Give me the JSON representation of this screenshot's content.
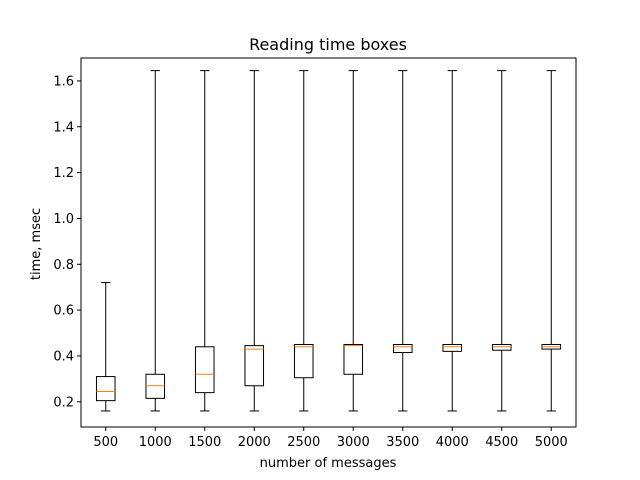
{
  "chart_data": {
    "type": "boxplot",
    "title": "Reading time boxes",
    "xlabel": "number of messages",
    "ylabel": "time, msec",
    "ylim": [
      0.09,
      1.7
    ],
    "yticks": [
      0.2,
      0.4,
      0.6,
      0.8,
      1.0,
      1.2,
      1.4,
      1.6
    ],
    "ytick_labels": [
      "0.2",
      "0.4",
      "0.6",
      "0.8",
      "1.0",
      "1.2",
      "1.4",
      "1.6"
    ],
    "categories": [
      "500",
      "1000",
      "1500",
      "2000",
      "2500",
      "3000",
      "3500",
      "4000",
      "4500",
      "5000"
    ],
    "boxes": [
      {
        "category": "500",
        "whisker_low": 0.16,
        "q1": 0.205,
        "median": 0.245,
        "q3": 0.31,
        "whisker_high": 0.72
      },
      {
        "category": "1000",
        "whisker_low": 0.16,
        "q1": 0.215,
        "median": 0.27,
        "q3": 0.32,
        "whisker_high": 1.645
      },
      {
        "category": "1500",
        "whisker_low": 0.16,
        "q1": 0.24,
        "median": 0.32,
        "q3": 0.44,
        "whisker_high": 1.645
      },
      {
        "category": "2000",
        "whisker_low": 0.16,
        "q1": 0.27,
        "median": 0.43,
        "q3": 0.445,
        "whisker_high": 1.645
      },
      {
        "category": "2500",
        "whisker_low": 0.16,
        "q1": 0.305,
        "median": 0.44,
        "q3": 0.45,
        "whisker_high": 1.645
      },
      {
        "category": "3000",
        "whisker_low": 0.16,
        "q1": 0.32,
        "median": 0.445,
        "q3": 0.45,
        "whisker_high": 1.645
      },
      {
        "category": "3500",
        "whisker_low": 0.16,
        "q1": 0.415,
        "median": 0.44,
        "q3": 0.45,
        "whisker_high": 1.645
      },
      {
        "category": "4000",
        "whisker_low": 0.16,
        "q1": 0.42,
        "median": 0.44,
        "q3": 0.45,
        "whisker_high": 1.645
      },
      {
        "category": "4500",
        "whisker_low": 0.16,
        "q1": 0.425,
        "median": 0.44,
        "q3": 0.45,
        "whisker_high": 1.645
      },
      {
        "category": "5000",
        "whisker_low": 0.16,
        "q1": 0.43,
        "median": 0.44,
        "q3": 0.45,
        "whisker_high": 1.645
      }
    ],
    "box_color": "#000000",
    "median_color": "#ff7f0e",
    "grid": false,
    "legend": "none"
  }
}
